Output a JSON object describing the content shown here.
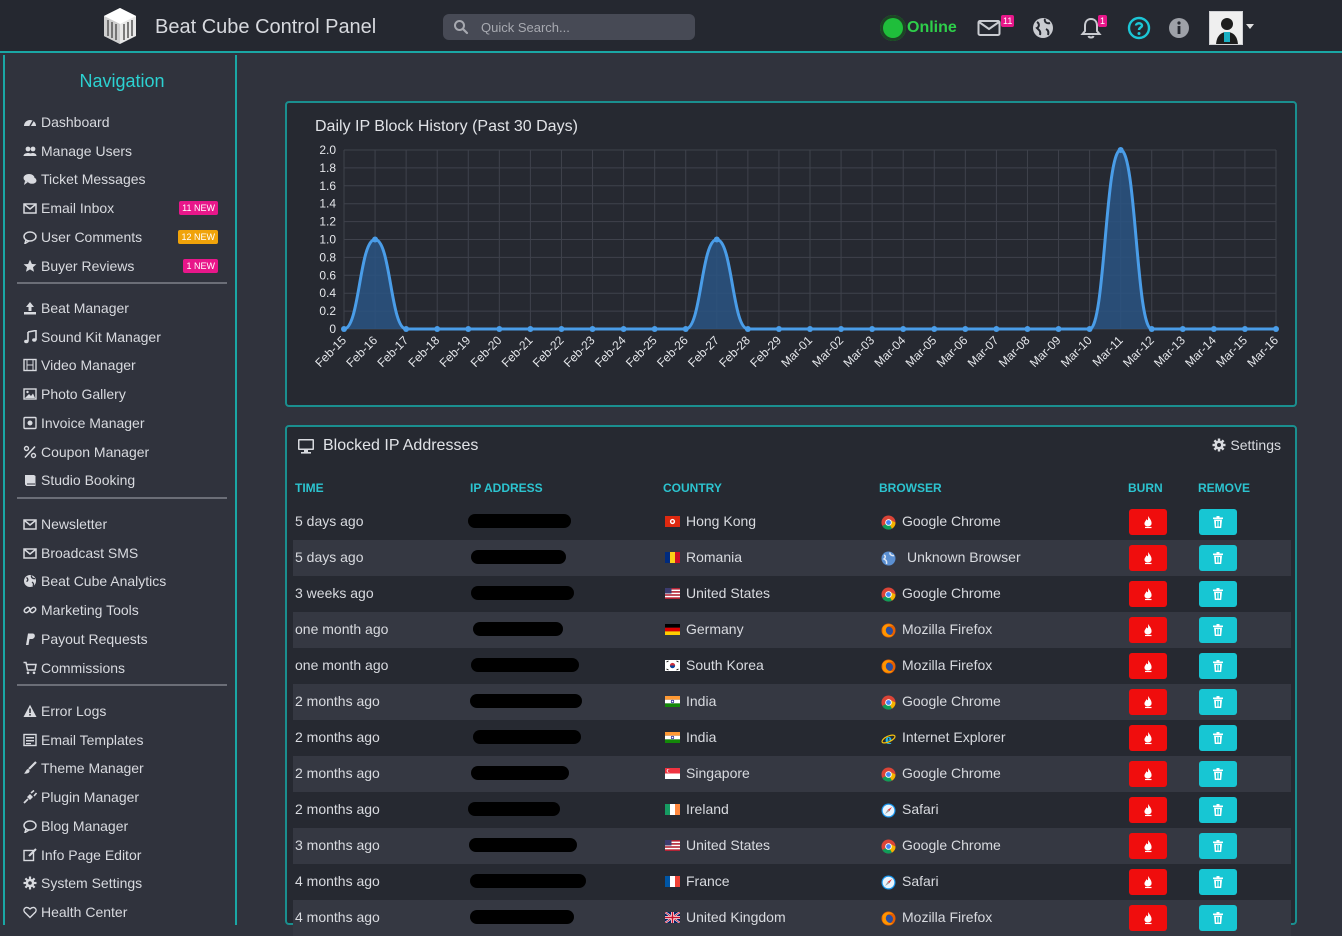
{
  "header": {
    "app_title": "Beat Cube Control Panel",
    "search_placeholder": "Quick Search...",
    "status_label": "Online",
    "mail_badge": "11",
    "notifications_badge": "1"
  },
  "sidebar": {
    "title": "Navigation",
    "groups": [
      [
        {
          "label": "Dashboard",
          "icon": "dashboard-icon"
        },
        {
          "label": "Manage Users",
          "icon": "users-icon"
        },
        {
          "label": "Ticket Messages",
          "icon": "comments-icon"
        },
        {
          "label": "Email Inbox",
          "icon": "envelope-icon",
          "badge": "11 NEW",
          "badge_color": "#e8178a"
        },
        {
          "label": "User Comments",
          "icon": "comment-icon",
          "badge": "12 NEW",
          "badge_color": "#f0a30a"
        },
        {
          "label": "Buyer Reviews",
          "icon": "star-icon",
          "badge": "1 NEW",
          "badge_color": "#e8178a"
        }
      ],
      [
        {
          "label": "Beat Manager",
          "icon": "upload-icon"
        },
        {
          "label": "Sound Kit Manager",
          "icon": "music-icon"
        },
        {
          "label": "Video Manager",
          "icon": "film-icon"
        },
        {
          "label": "Photo Gallery",
          "icon": "image-icon"
        },
        {
          "label": "Invoice Manager",
          "icon": "invoice-icon"
        },
        {
          "label": "Coupon Manager",
          "icon": "percent-icon"
        },
        {
          "label": "Studio Booking",
          "icon": "book-icon"
        }
      ],
      [
        {
          "label": "Newsletter",
          "icon": "envelope-icon"
        },
        {
          "label": "Broadcast SMS",
          "icon": "envelope-icon"
        },
        {
          "label": "Beat Cube Analytics",
          "icon": "globe-icon"
        },
        {
          "label": "Marketing Tools",
          "icon": "link-icon"
        },
        {
          "label": "Payout Requests",
          "icon": "paypal-icon"
        },
        {
          "label": "Commissions",
          "icon": "cart-icon"
        }
      ],
      [
        {
          "label": "Error Logs",
          "icon": "warning-icon"
        },
        {
          "label": "Email Templates",
          "icon": "template-icon"
        },
        {
          "label": "Theme Manager",
          "icon": "brush-icon"
        },
        {
          "label": "Plugin Manager",
          "icon": "plug-icon"
        },
        {
          "label": "Blog Manager",
          "icon": "comment-icon"
        },
        {
          "label": "Info Page Editor",
          "icon": "edit-icon"
        },
        {
          "label": "System Settings",
          "icon": "gear-icon"
        },
        {
          "label": "Health Center",
          "icon": "health-icon"
        }
      ]
    ]
  },
  "chart_data": {
    "type": "area",
    "title": "Daily IP Block History (Past 30 Days)",
    "x": [
      "Feb-15",
      "Feb-16",
      "Feb-17",
      "Feb-18",
      "Feb-19",
      "Feb-20",
      "Feb-21",
      "Feb-22",
      "Feb-23",
      "Feb-24",
      "Feb-25",
      "Feb-26",
      "Feb-27",
      "Feb-28",
      "Feb-29",
      "Mar-01",
      "Mar-02",
      "Mar-03",
      "Mar-04",
      "Mar-05",
      "Mar-06",
      "Mar-07",
      "Mar-08",
      "Mar-09",
      "Mar-10",
      "Mar-11",
      "Mar-12",
      "Mar-13",
      "Mar-14",
      "Mar-15",
      "Mar-16"
    ],
    "series": [
      {
        "values": [
          0,
          1,
          0,
          0,
          0,
          0,
          0,
          0,
          0,
          0,
          0,
          0,
          1,
          0,
          0,
          0,
          0,
          0,
          0,
          0,
          0,
          0,
          0,
          0,
          0,
          2,
          0,
          0,
          0,
          0,
          0
        ]
      }
    ],
    "ylim": [
      0,
      2.0
    ],
    "yticks": [
      "2.0",
      "1.8",
      "1.6",
      "1.4",
      "1.2",
      "1.0",
      "0.8",
      "0.6",
      "0.4",
      "0.2",
      "0"
    ],
    "grid": true,
    "color": "#4a9de8"
  },
  "table": {
    "title": "Blocked IP Addresses",
    "settings_label": "Settings",
    "columns": [
      "TIME",
      "IP ADDRESS",
      "COUNTRY",
      "BROWSER",
      "BURN",
      "REMOVE"
    ],
    "rows": [
      {
        "time": "5 days ago",
        "country": "Hong Kong",
        "flag": "hk",
        "browser": "Google Chrome",
        "browser_icon": "chrome-icon"
      },
      {
        "time": "5 days ago",
        "country": "Romania",
        "flag": "ro",
        "browser": "Unknown Browser",
        "browser_icon": "unknown-browser-icon"
      },
      {
        "time": "3 weeks ago",
        "country": "United States",
        "flag": "us",
        "browser": "Google Chrome",
        "browser_icon": "chrome-icon"
      },
      {
        "time": "one month ago",
        "country": "Germany",
        "flag": "de",
        "browser": "Mozilla Firefox",
        "browser_icon": "firefox-icon"
      },
      {
        "time": "one month ago",
        "country": "South Korea",
        "flag": "kr",
        "browser": "Mozilla Firefox",
        "browser_icon": "firefox-icon"
      },
      {
        "time": "2 months ago",
        "country": "India",
        "flag": "in",
        "browser": "Google Chrome",
        "browser_icon": "chrome-icon"
      },
      {
        "time": "2 months ago",
        "country": "India",
        "flag": "in",
        "browser": "Internet Explorer",
        "browser_icon": "ie-icon"
      },
      {
        "time": "2 months ago",
        "country": "Singapore",
        "flag": "sg",
        "browser": "Google Chrome",
        "browser_icon": "chrome-icon"
      },
      {
        "time": "2 months ago",
        "country": "Ireland",
        "flag": "ie",
        "browser": "Safari",
        "browser_icon": "safari-icon"
      },
      {
        "time": "3 months ago",
        "country": "United States",
        "flag": "us",
        "browser": "Google Chrome",
        "browser_icon": "chrome-icon"
      },
      {
        "time": "4 months ago",
        "country": "France",
        "flag": "fr",
        "browser": "Safari",
        "browser_icon": "safari-icon"
      },
      {
        "time": "4 months ago",
        "country": "United Kingdom",
        "flag": "gb",
        "browser": "Mozilla Firefox",
        "browser_icon": "firefox-icon"
      }
    ]
  }
}
